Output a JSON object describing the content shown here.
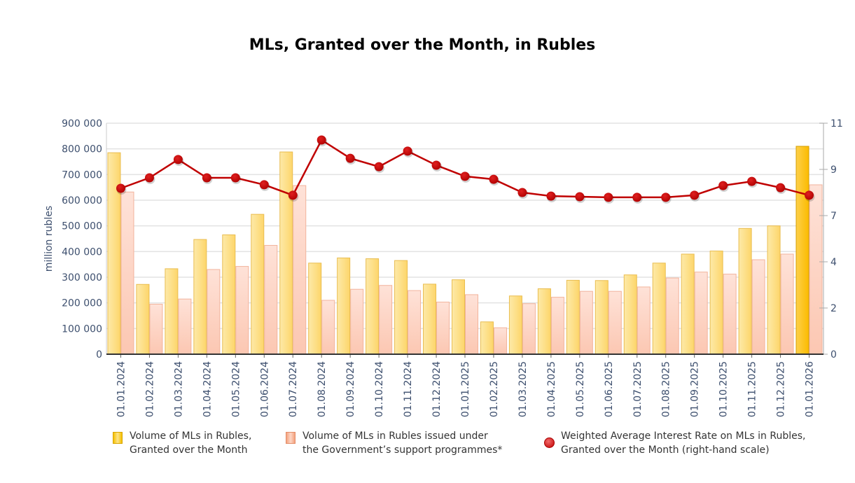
{
  "chart_data": {
    "type": "bar",
    "title": "MLs, Granted over the Month, in Rubles",
    "ylabel": "million rubles",
    "ylabel_right": "",
    "xlabel": "",
    "ylim": [
      0,
      900000
    ],
    "ylim_right": [
      0,
      11
    ],
    "yticks": [
      "900 000",
      "800 000",
      "700 000",
      "600 000",
      "500 000",
      "400 000",
      "300 000",
      "200 000",
      "100 000",
      "0"
    ],
    "yticks_right": [
      {
        "value": 11,
        "label": "11"
      },
      {
        "value": 8.8,
        "label": "9"
      },
      {
        "value": 6.6,
        "label": "7"
      },
      {
        "value": 4.4,
        "label": "4"
      },
      {
        "value": 2.2,
        "label": "2"
      },
      {
        "value": 0,
        "label": "0"
      }
    ],
    "grid": true,
    "legend_position": "bottom",
    "categories": [
      "01.01.2024",
      "01.02.2024",
      "01.03.2024",
      "01.04.2024",
      "01.05.2024",
      "01.06.2024",
      "01.07.2024",
      "01.08.2024",
      "01.09.2024",
      "01.10.2024",
      "01.11.2024",
      "01.12.2024",
      "01.01.2025",
      "01.02.2025",
      "01.03.2025",
      "01.04.2025",
      "01.05.2025",
      "01.06.2025",
      "01.07.2025",
      "01.08.2025",
      "01.09.2025",
      "01.10.2025",
      "01.11.2025",
      "01.12.2025",
      "01.01.2026"
    ],
    "series": [
      {
        "name": "Volume of MLs in Rubles, Granted over the Month",
        "legend_lines": [
          "Volume of MLs in Rubles,",
          "Granted over the Month"
        ],
        "type": "bar",
        "axis": "left",
        "color": "#fde28a",
        "values": [
          785000,
          272000,
          333000,
          447000,
          465000,
          545000,
          788000,
          355000,
          375000,
          372000,
          365000,
          273000,
          290000,
          126000,
          227000,
          255000,
          288000,
          287000,
          309000,
          355000,
          390000,
          402000,
          490000,
          500000,
          810000
        ]
      },
      {
        "name": "Volume of MLs in Rubles issued under the Government’s support programmes*",
        "legend_lines": [
          "Volume of MLs in Rubles issued under",
          "the Government’s support programmes*"
        ],
        "type": "bar",
        "axis": "left",
        "color": "#fdd0bf",
        "values": [
          632000,
          195000,
          215000,
          330000,
          342000,
          424000,
          657000,
          210000,
          253000,
          268000,
          248000,
          203000,
          232000,
          103000,
          197000,
          222000,
          245000,
          245000,
          262000,
          297000,
          320000,
          312000,
          368000,
          390000,
          660000
        ]
      },
      {
        "name": "Weighted Average Interest Rate on MLs in Rubles, Granted over the Month (right-hand scale)",
        "legend_lines": [
          "Weighted Average Interest Rate on MLs in Rubles,",
          "Granted over the Month (right-hand scale)"
        ],
        "type": "line",
        "axis": "right",
        "color": "#c00000",
        "values": [
          7.9,
          8.4,
          9.27,
          8.4,
          8.4,
          8.07,
          7.57,
          10.2,
          9.33,
          8.93,
          9.67,
          9.0,
          8.47,
          8.33,
          7.7,
          7.53,
          7.5,
          7.47,
          7.47,
          7.47,
          7.57,
          8.03,
          8.23,
          7.93,
          7.57
        ]
      }
    ],
    "highlight_last_bar_color": "#fdc000"
  }
}
